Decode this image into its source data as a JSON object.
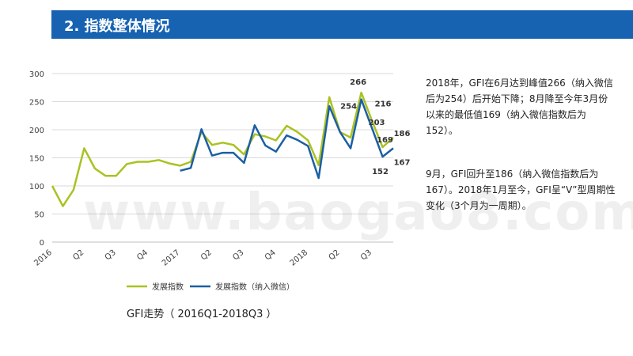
{
  "header": {
    "title": "2. 指数整体情况"
  },
  "colors": {
    "header_bg": "#1763b2",
    "series_1": "#aac221",
    "series_2": "#1b5fa4",
    "grid": "#d9d9d9"
  },
  "chart_data": {
    "type": "line",
    "title": "",
    "x_tick_labels": [
      {
        "index": 0,
        "label": "2016"
      },
      {
        "index": 3,
        "label": "Q2"
      },
      {
        "index": 6,
        "label": "Q3"
      },
      {
        "index": 9,
        "label": "Q4"
      },
      {
        "index": 12,
        "label": "2017"
      },
      {
        "index": 15,
        "label": "Q2"
      },
      {
        "index": 18,
        "label": "Q3"
      },
      {
        "index": 21,
        "label": "Q4"
      },
      {
        "index": 24,
        "label": "2018"
      },
      {
        "index": 27,
        "label": "Q2"
      },
      {
        "index": 30,
        "label": "Q3"
      }
    ],
    "ylim": [
      0,
      300
    ],
    "yticks": [
      0,
      50,
      100,
      150,
      200,
      250,
      300
    ],
    "series": [
      {
        "name": "发展指数",
        "color": "#aac221",
        "x": [
          0,
          1,
          2,
          3,
          4,
          5,
          6,
          7,
          8,
          9,
          10,
          11,
          12,
          13,
          14,
          15,
          16,
          17,
          18,
          19,
          20,
          21,
          22,
          23,
          24,
          25,
          26,
          27,
          28,
          29,
          30,
          31,
          32
        ],
        "values": [
          100,
          64,
          93,
          167,
          131,
          118,
          118,
          139,
          143,
          143,
          146,
          140,
          136,
          143,
          196,
          173,
          177,
          173,
          156,
          192,
          188,
          181,
          207,
          196,
          181,
          137,
          258,
          196,
          186,
          266,
          216,
          169,
          186
        ]
      },
      {
        "name": "发展指数（纳入微信）",
        "color": "#1b5fa4",
        "x": [
          12,
          13,
          14,
          15,
          16,
          17,
          18,
          19,
          20,
          21,
          22,
          23,
          24,
          25,
          26,
          27,
          28,
          29,
          30,
          31,
          32
        ],
        "values": [
          127,
          132,
          201,
          154,
          159,
          159,
          141,
          208,
          172,
          161,
          190,
          182,
          171,
          114,
          242,
          196,
          167,
          254,
          203,
          152,
          167
        ]
      }
    ],
    "annotations": [
      {
        "text": "266",
        "series": 0,
        "index": 29
      },
      {
        "text": "254",
        "series": 1,
        "index": 29
      },
      {
        "text": "216",
        "series": 0,
        "index": 30
      },
      {
        "text": "203",
        "series": 1,
        "index": 30
      },
      {
        "text": "169",
        "series": 0,
        "index": 31
      },
      {
        "text": "152",
        "series": 1,
        "index": 31
      },
      {
        "text": "186",
        "series": 0,
        "index": 32
      },
      {
        "text": "167",
        "series": 1,
        "index": 32
      }
    ],
    "legend": [
      "发展指数",
      "发展指数（纳入微信）"
    ],
    "legend_position": "bottom",
    "grid": true
  },
  "notes": [
    "2018年，GFI在6月达到峰值266（纳入微信后为254）后开始下降；8月降至今年3月份以来的最低值169（纳入微信指数后为152）。",
    "9月，GFI回升至186（纳入微信指数后为167）。2018年1月至今，GFI呈“V”型周期性变化（3个月为一周期）。"
  ],
  "watermark": "www.baogao8.com",
  "caption": "GFI走势（  2016Q1-2018Q3 ）"
}
